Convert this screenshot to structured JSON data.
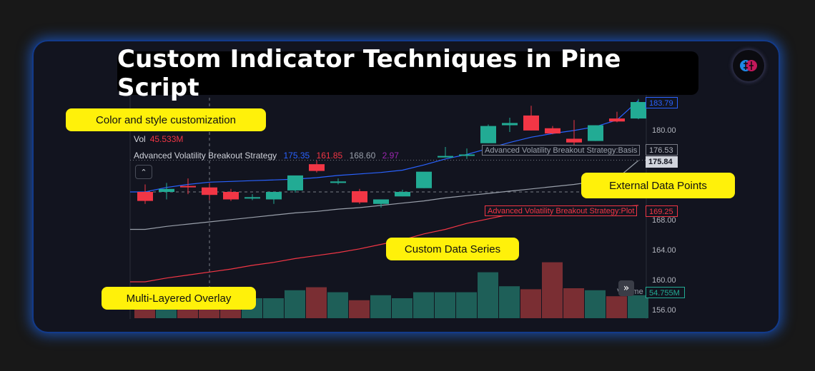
{
  "title": "Custom Indicator Techniques in Pine Script",
  "callouts": {
    "color_style": "Color and style customization",
    "external_data": "External Data Points",
    "custom_series": "Custom Data Series",
    "multi_layered": "Multi-Layered Overlay"
  },
  "legend": {
    "vol_label": "Vol",
    "vol_value": "45.533M",
    "strategy_name": "Advanced Volatility Breakout Strategy",
    "strategy_values": [
      "175.35",
      "161.85",
      "168.60",
      "2.97"
    ]
  },
  "price_labels": {
    "p1": "183.79",
    "p2": "176.53",
    "p3": "175.84",
    "p4": "169.25",
    "volume": "54.755M"
  },
  "axis_ticks": [
    "180.00",
    "168.00",
    "164.00",
    "160.00",
    "156.00"
  ],
  "tags": {
    "basis": "Advanced Volatility Breakout Strategy:Basis",
    "plot": "Advanced Volatility Breakout Strategy:Plot",
    "volume": "Volume"
  },
  "colors": {
    "up": "#22ab94",
    "down": "#f23645",
    "basis": "#2962ff",
    "band": "#9aa0ab",
    "plot": "#f23645",
    "callout": "#fff10a"
  },
  "icons": {
    "collapse": "chevron-up-icon",
    "scroll": "double-chevron-right-icon",
    "logo": "brain-logo-icon"
  },
  "chart_data": {
    "type": "candlestick",
    "candles": [
      {
        "o": 171.6,
        "h": 172.6,
        "c": 170.4,
        "l": 170.0
      },
      {
        "o": 171.6,
        "h": 172.8,
        "c": 172.0,
        "l": 170.6
      },
      {
        "o": 172.4,
        "h": 173.4,
        "c": 172.3,
        "l": 171.3
      },
      {
        "o": 172.2,
        "h": 172.8,
        "c": 171.2,
        "l": 170.5
      },
      {
        "o": 171.6,
        "h": 172.0,
        "c": 170.6,
        "l": 170.4
      },
      {
        "o": 170.8,
        "h": 171.3,
        "c": 170.9,
        "l": 170.5
      },
      {
        "o": 170.6,
        "h": 171.5,
        "c": 171.6,
        "l": 170.0
      },
      {
        "o": 171.8,
        "h": 173.5,
        "c": 173.8,
        "l": 171.5
      },
      {
        "o": 175.3,
        "h": 175.8,
        "c": 174.4,
        "l": 174.2
      },
      {
        "o": 172.8,
        "h": 173.4,
        "c": 173.0,
        "l": 172.6
      },
      {
        "o": 171.7,
        "h": 172.0,
        "c": 170.2,
        "l": 170.0
      },
      {
        "o": 170.0,
        "h": 170.4,
        "c": 170.6,
        "l": 169.5
      },
      {
        "o": 171.0,
        "h": 171.9,
        "c": 171.6,
        "l": 171.0
      },
      {
        "o": 172.1,
        "h": 174.2,
        "c": 174.3,
        "l": 172.1
      },
      {
        "o": 176.2,
        "h": 177.6,
        "c": 176.4,
        "l": 176.2
      },
      {
        "o": 176.6,
        "h": 177.4,
        "c": 176.6,
        "l": 176.0
      },
      {
        "o": 178.1,
        "h": 180.6,
        "c": 180.4,
        "l": 178.1
      },
      {
        "o": 180.5,
        "h": 181.5,
        "c": 180.8,
        "l": 179.6
      },
      {
        "o": 181.8,
        "h": 183.1,
        "c": 179.8,
        "l": 179.8
      },
      {
        "o": 180.1,
        "h": 180.4,
        "c": 179.4,
        "l": 179.3
      },
      {
        "o": 178.7,
        "h": 181.2,
        "c": 178.2,
        "l": 177.8
      },
      {
        "o": 178.4,
        "h": 180.5,
        "c": 180.5,
        "l": 178.4
      },
      {
        "o": 181.4,
        "h": 182.3,
        "c": 181.0,
        "l": 180.9
      },
      {
        "o": 181.4,
        "h": 184.0,
        "c": 183.6,
        "l": 181.3
      }
    ],
    "basis": [
      171.6,
      172.2,
      172.6,
      172.9,
      173.0,
      173.1,
      173.2,
      173.3,
      173.5,
      173.8,
      174.0,
      174.2,
      174.5,
      175.2,
      176.0,
      176.6,
      177.4,
      178.2,
      178.9,
      179.4,
      179.8,
      180.3,
      181.2,
      183.8
    ],
    "lower_band": [
      166.6,
      167.0,
      167.3,
      167.6,
      167.9,
      168.2,
      168.5,
      168.8,
      169.0,
      169.3,
      169.5,
      169.8,
      170.1,
      170.4,
      170.8,
      171.1,
      171.4,
      171.7,
      172.0,
      172.3,
      172.6,
      173.0,
      173.4,
      175.8
    ],
    "plot": [
      159.6,
      160.1,
      160.5,
      160.9,
      161.3,
      161.8,
      162.2,
      162.7,
      163.1,
      163.5,
      164.0,
      164.6,
      165.2,
      166.0,
      166.6,
      167.4,
      168.0,
      168.6,
      169.2,
      169.4,
      169.4,
      169.5,
      169.6,
      169.8
    ],
    "volume_relative": [
      2.0,
      2.2,
      1.6,
      2.7,
      2.3,
      2.0,
      2.0,
      2.8,
      3.1,
      2.6,
      1.8,
      2.3,
      2.0,
      2.6,
      2.6,
      2.6,
      4.6,
      3.2,
      2.9,
      5.6,
      3.0,
      2.8,
      2.2,
      2.3
    ],
    "ylim": [
      155.0,
      186.0
    ]
  }
}
